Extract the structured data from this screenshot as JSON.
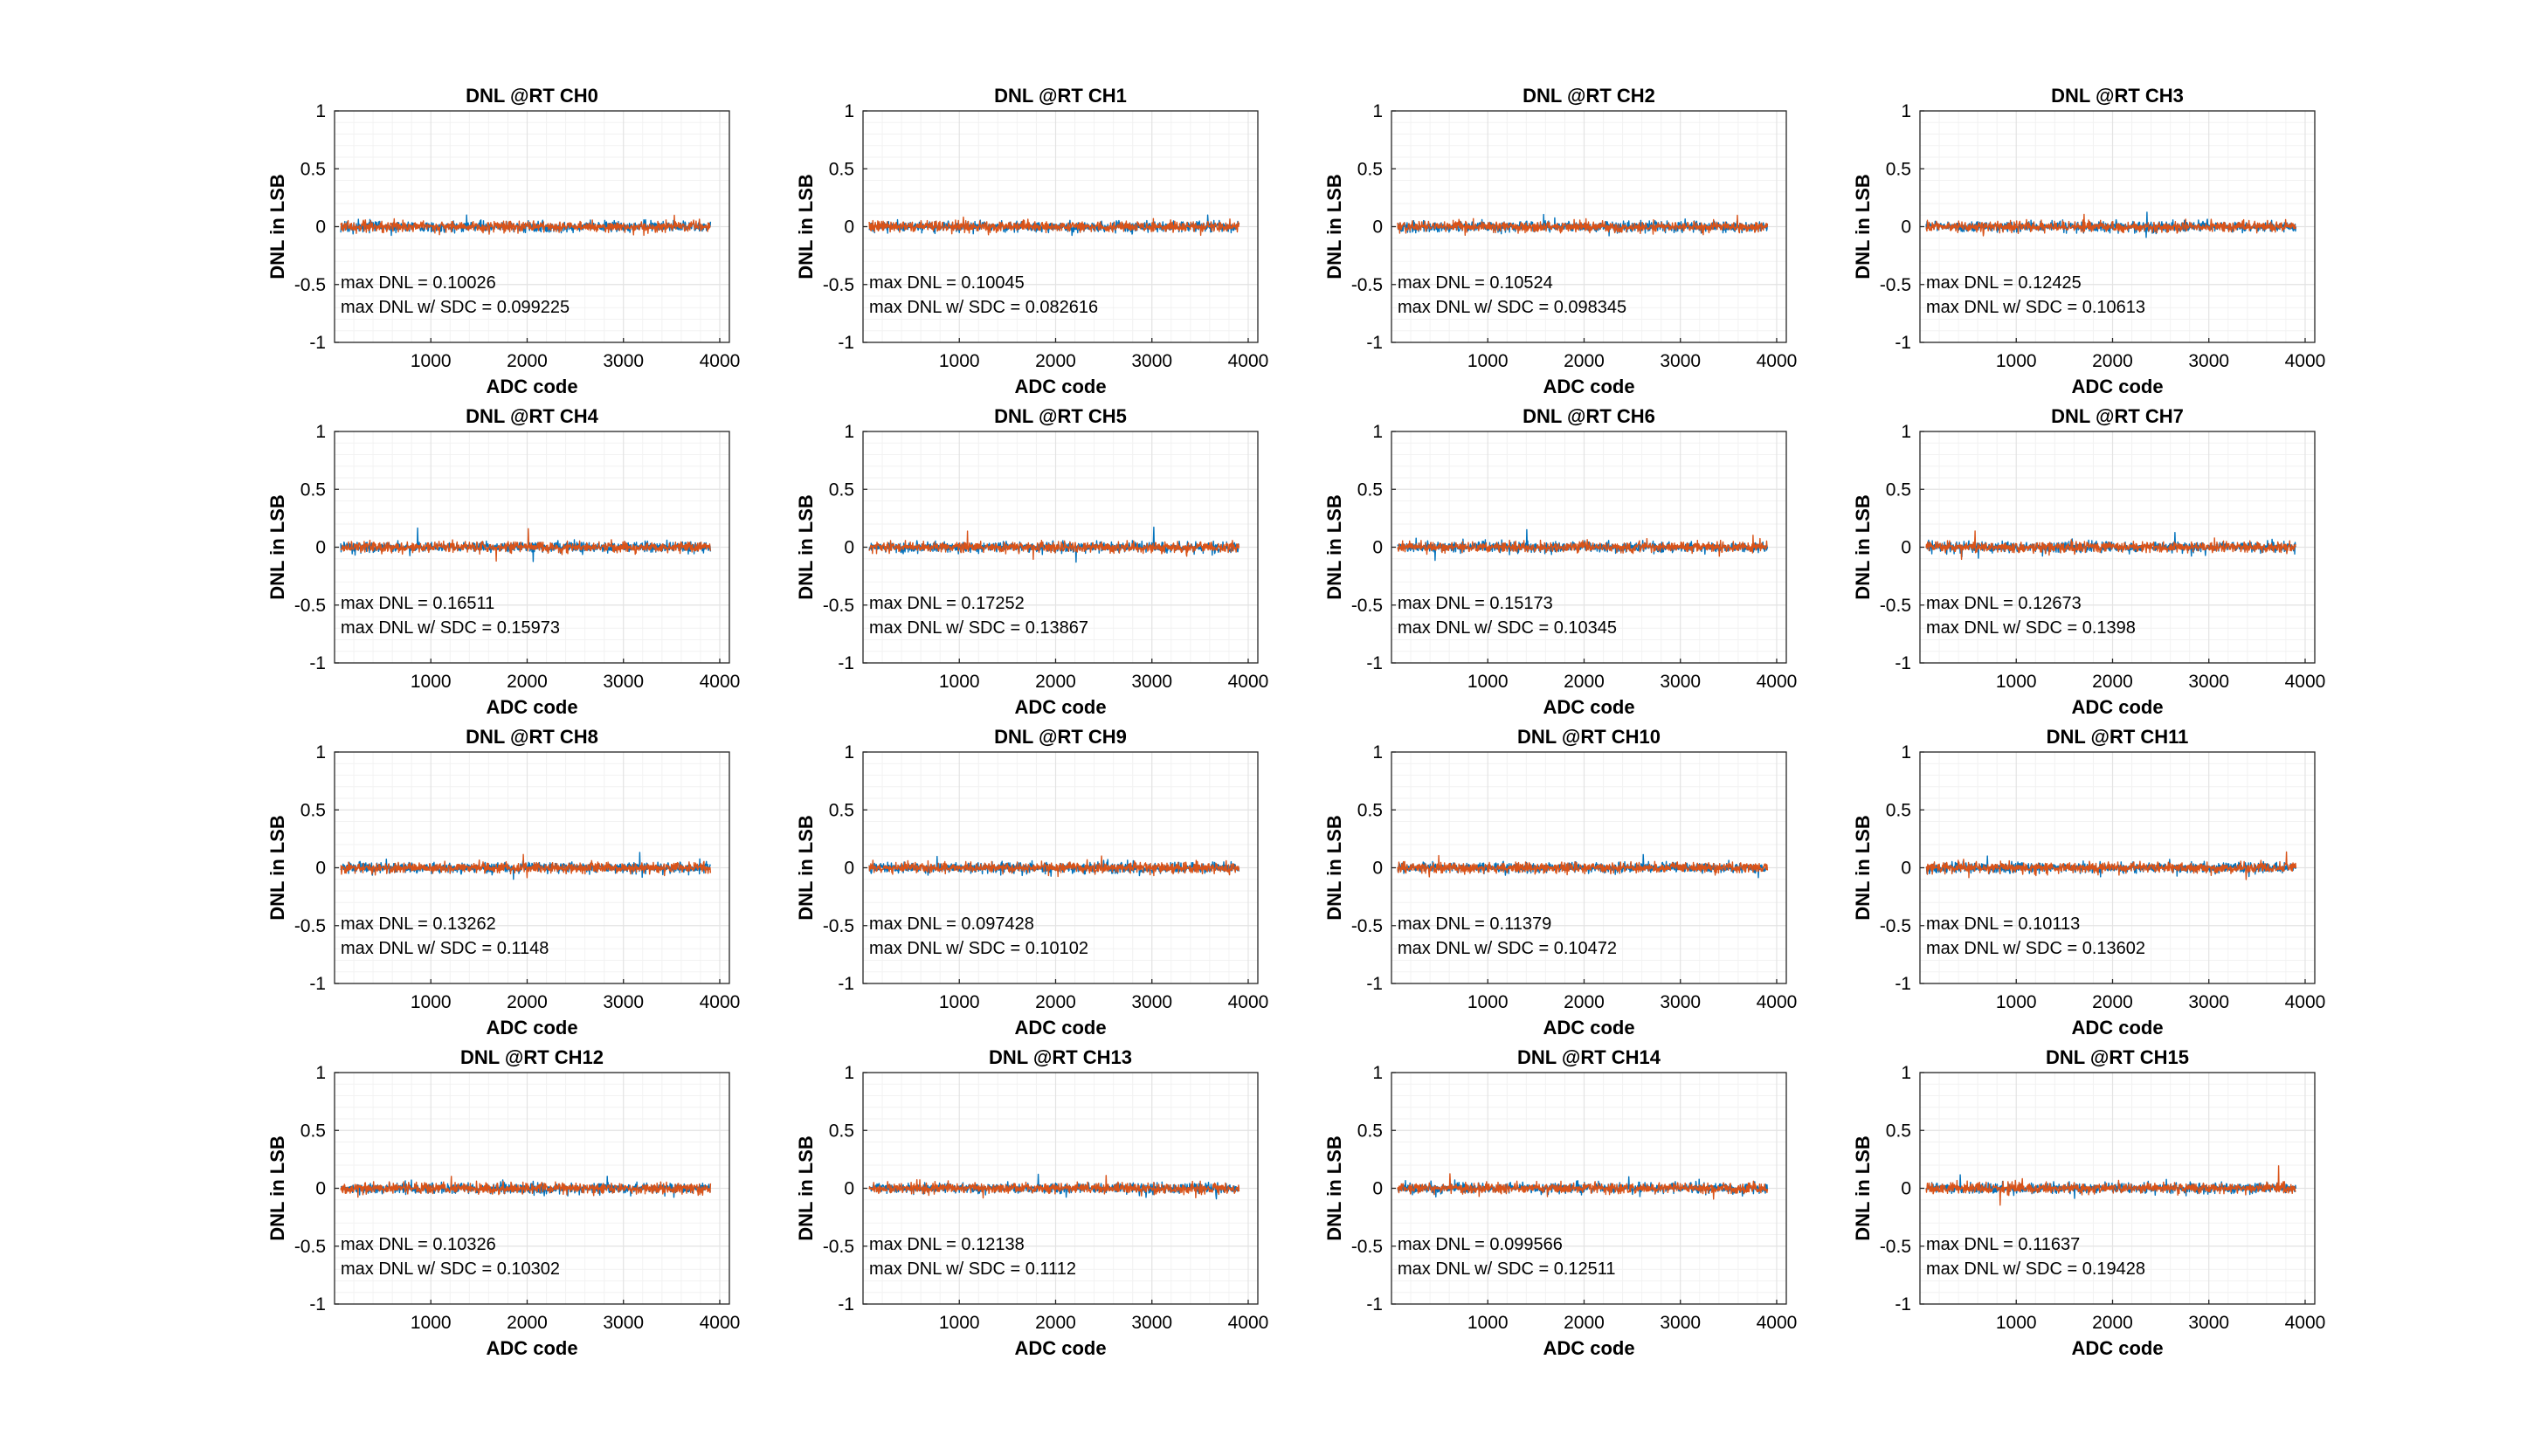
{
  "figure": {
    "colors": {
      "background": "#ffffff",
      "axis": "#262626",
      "grid": "#e3e3e3",
      "minor_grid": "#f2f2f2",
      "dnl": "#0072BD",
      "dnl_sdc": "#D95319"
    }
  },
  "chart_data": [
    {
      "type": "line",
      "title": "DNL @RT CH0",
      "xlabel": "ADC code",
      "ylabel": "DNL in LSB",
      "xlim": [
        0,
        4100
      ],
      "ylim": [
        -1,
        1
      ],
      "xticks": [
        1000,
        2000,
        3000,
        4000
      ],
      "yticks": [
        -1,
        -0.5,
        0,
        0.5,
        1
      ],
      "x_range": [
        64,
        3904
      ],
      "grid": true,
      "series": [
        {
          "color": "#0072BD",
          "max_dnl": 0.10026
        },
        {
          "color": "#D95319",
          "max_dnl": 0.099225
        }
      ],
      "annotations": [
        "max DNL = 0.10026",
        "max DNL w/ SDC = 0.099225"
      ]
    },
    {
      "type": "line",
      "title": "DNL @RT CH1",
      "xlabel": "ADC code",
      "ylabel": "DNL in LSB",
      "xlim": [
        0,
        4100
      ],
      "ylim": [
        -1,
        1
      ],
      "xticks": [
        1000,
        2000,
        3000,
        4000
      ],
      "yticks": [
        -1,
        -0.5,
        0,
        0.5,
        1
      ],
      "x_range": [
        64,
        3904
      ],
      "grid": true,
      "series": [
        {
          "color": "#0072BD",
          "max_dnl": 0.10045
        },
        {
          "color": "#D95319",
          "max_dnl": 0.082616
        }
      ],
      "annotations": [
        "max DNL = 0.10045",
        "max DNL w/ SDC = 0.082616"
      ]
    },
    {
      "type": "line",
      "title": "DNL @RT CH2",
      "xlabel": "ADC code",
      "ylabel": "DNL in LSB",
      "xlim": [
        0,
        4100
      ],
      "ylim": [
        -1,
        1
      ],
      "xticks": [
        1000,
        2000,
        3000,
        4000
      ],
      "yticks": [
        -1,
        -0.5,
        0,
        0.5,
        1
      ],
      "x_range": [
        64,
        3904
      ],
      "grid": true,
      "series": [
        {
          "color": "#0072BD",
          "max_dnl": 0.10524
        },
        {
          "color": "#D95319",
          "max_dnl": 0.098345
        }
      ],
      "annotations": [
        "max DNL = 0.10524",
        "max DNL w/ SDC = 0.098345"
      ]
    },
    {
      "type": "line",
      "title": "DNL @RT CH3",
      "xlabel": "ADC code",
      "ylabel": "DNL in LSB",
      "xlim": [
        0,
        4100
      ],
      "ylim": [
        -1,
        1
      ],
      "xticks": [
        1000,
        2000,
        3000,
        4000
      ],
      "yticks": [
        -1,
        -0.5,
        0,
        0.5,
        1
      ],
      "x_range": [
        64,
        3904
      ],
      "grid": true,
      "series": [
        {
          "color": "#0072BD",
          "max_dnl": 0.12425
        },
        {
          "color": "#D95319",
          "max_dnl": 0.10613
        }
      ],
      "annotations": [
        "max DNL = 0.12425",
        "max DNL w/ SDC = 0.10613"
      ]
    },
    {
      "type": "line",
      "title": "DNL @RT CH4",
      "xlabel": "ADC code",
      "ylabel": "DNL in LSB",
      "xlim": [
        0,
        4100
      ],
      "ylim": [
        -1,
        1
      ],
      "xticks": [
        1000,
        2000,
        3000,
        4000
      ],
      "yticks": [
        -1,
        -0.5,
        0,
        0.5,
        1
      ],
      "x_range": [
        64,
        3904
      ],
      "grid": true,
      "series": [
        {
          "color": "#0072BD",
          "max_dnl": 0.16511
        },
        {
          "color": "#D95319",
          "max_dnl": 0.15973
        }
      ],
      "annotations": [
        "max DNL = 0.16511",
        "max DNL w/ SDC = 0.15973"
      ]
    },
    {
      "type": "line",
      "title": "DNL @RT CH5",
      "xlabel": "ADC code",
      "ylabel": "DNL in LSB",
      "xlim": [
        0,
        4100
      ],
      "ylim": [
        -1,
        1
      ],
      "xticks": [
        1000,
        2000,
        3000,
        4000
      ],
      "yticks": [
        -1,
        -0.5,
        0,
        0.5,
        1
      ],
      "x_range": [
        64,
        3904
      ],
      "grid": true,
      "series": [
        {
          "color": "#0072BD",
          "max_dnl": 0.17252
        },
        {
          "color": "#D95319",
          "max_dnl": 0.13867
        }
      ],
      "annotations": [
        "max DNL = 0.17252",
        "max DNL w/ SDC = 0.13867"
      ]
    },
    {
      "type": "line",
      "title": "DNL @RT CH6",
      "xlabel": "ADC code",
      "ylabel": "DNL in LSB",
      "xlim": [
        0,
        4100
      ],
      "ylim": [
        -1,
        1
      ],
      "xticks": [
        1000,
        2000,
        3000,
        4000
      ],
      "yticks": [
        -1,
        -0.5,
        0,
        0.5,
        1
      ],
      "x_range": [
        64,
        3904
      ],
      "grid": true,
      "series": [
        {
          "color": "#0072BD",
          "max_dnl": 0.15173
        },
        {
          "color": "#D95319",
          "max_dnl": 0.10345
        }
      ],
      "annotations": [
        "max DNL = 0.15173",
        "max DNL w/ SDC = 0.10345"
      ]
    },
    {
      "type": "line",
      "title": "DNL @RT CH7",
      "xlabel": "ADC code",
      "ylabel": "DNL in LSB",
      "xlim": [
        0,
        4100
      ],
      "ylim": [
        -1,
        1
      ],
      "xticks": [
        1000,
        2000,
        3000,
        4000
      ],
      "yticks": [
        -1,
        -0.5,
        0,
        0.5,
        1
      ],
      "x_range": [
        64,
        3904
      ],
      "grid": true,
      "series": [
        {
          "color": "#0072BD",
          "max_dnl": 0.12673
        },
        {
          "color": "#D95319",
          "max_dnl": 0.1398
        }
      ],
      "annotations": [
        "max DNL = 0.12673",
        "max DNL w/ SDC = 0.1398"
      ]
    },
    {
      "type": "line",
      "title": "DNL @RT CH8",
      "xlabel": "ADC code",
      "ylabel": "DNL in LSB",
      "xlim": [
        0,
        4100
      ],
      "ylim": [
        -1,
        1
      ],
      "xticks": [
        1000,
        2000,
        3000,
        4000
      ],
      "yticks": [
        -1,
        -0.5,
        0,
        0.5,
        1
      ],
      "x_range": [
        64,
        3904
      ],
      "grid": true,
      "series": [
        {
          "color": "#0072BD",
          "max_dnl": 0.13262
        },
        {
          "color": "#D95319",
          "max_dnl": 0.1148
        }
      ],
      "annotations": [
        "max DNL = 0.13262",
        "max DNL w/ SDC = 0.1148"
      ]
    },
    {
      "type": "line",
      "title": "DNL @RT CH9",
      "xlabel": "ADC code",
      "ylabel": "DNL in LSB",
      "xlim": [
        0,
        4100
      ],
      "ylim": [
        -1,
        1
      ],
      "xticks": [
        1000,
        2000,
        3000,
        4000
      ],
      "yticks": [
        -1,
        -0.5,
        0,
        0.5,
        1
      ],
      "x_range": [
        64,
        3904
      ],
      "grid": true,
      "series": [
        {
          "color": "#0072BD",
          "max_dnl": 0.097428
        },
        {
          "color": "#D95319",
          "max_dnl": 0.10102
        }
      ],
      "annotations": [
        "max DNL = 0.097428",
        "max DNL w/ SDC = 0.10102"
      ]
    },
    {
      "type": "line",
      "title": "DNL @RT CH10",
      "xlabel": "ADC code",
      "ylabel": "DNL in LSB",
      "xlim": [
        0,
        4100
      ],
      "ylim": [
        -1,
        1
      ],
      "xticks": [
        1000,
        2000,
        3000,
        4000
      ],
      "yticks": [
        -1,
        -0.5,
        0,
        0.5,
        1
      ],
      "x_range": [
        64,
        3904
      ],
      "grid": true,
      "series": [
        {
          "color": "#0072BD",
          "max_dnl": 0.11379
        },
        {
          "color": "#D95319",
          "max_dnl": 0.10472
        }
      ],
      "annotations": [
        "max DNL = 0.11379",
        "max DNL w/ SDC = 0.10472"
      ]
    },
    {
      "type": "line",
      "title": "DNL @RT CH11",
      "xlabel": "ADC code",
      "ylabel": "DNL in LSB",
      "xlim": [
        0,
        4100
      ],
      "ylim": [
        -1,
        1
      ],
      "xticks": [
        1000,
        2000,
        3000,
        4000
      ],
      "yticks": [
        -1,
        -0.5,
        0,
        0.5,
        1
      ],
      "x_range": [
        64,
        3904
      ],
      "grid": true,
      "series": [
        {
          "color": "#0072BD",
          "max_dnl": 0.10113
        },
        {
          "color": "#D95319",
          "max_dnl": 0.13602
        }
      ],
      "annotations": [
        "max DNL = 0.10113",
        "max DNL w/ SDC = 0.13602"
      ]
    },
    {
      "type": "line",
      "title": "DNL @RT CH12",
      "xlabel": "ADC code",
      "ylabel": "DNL in LSB",
      "xlim": [
        0,
        4100
      ],
      "ylim": [
        -1,
        1
      ],
      "xticks": [
        1000,
        2000,
        3000,
        4000
      ],
      "yticks": [
        -1,
        -0.5,
        0,
        0.5,
        1
      ],
      "x_range": [
        64,
        3904
      ],
      "grid": true,
      "series": [
        {
          "color": "#0072BD",
          "max_dnl": 0.10326
        },
        {
          "color": "#D95319",
          "max_dnl": 0.10302
        }
      ],
      "annotations": [
        "max DNL = 0.10326",
        "max DNL w/ SDC = 0.10302"
      ]
    },
    {
      "type": "line",
      "title": "DNL @RT CH13",
      "xlabel": "ADC code",
      "ylabel": "DNL in LSB",
      "xlim": [
        0,
        4100
      ],
      "ylim": [
        -1,
        1
      ],
      "xticks": [
        1000,
        2000,
        3000,
        4000
      ],
      "yticks": [
        -1,
        -0.5,
        0,
        0.5,
        1
      ],
      "x_range": [
        64,
        3904
      ],
      "grid": true,
      "series": [
        {
          "color": "#0072BD",
          "max_dnl": 0.12138
        },
        {
          "color": "#D95319",
          "max_dnl": 0.1112
        }
      ],
      "annotations": [
        "max DNL = 0.12138",
        "max DNL w/ SDC = 0.1112"
      ]
    },
    {
      "type": "line",
      "title": "DNL @RT CH14",
      "xlabel": "ADC code",
      "ylabel": "DNL in LSB",
      "xlim": [
        0,
        4100
      ],
      "ylim": [
        -1,
        1
      ],
      "xticks": [
        1000,
        2000,
        3000,
        4000
      ],
      "yticks": [
        -1,
        -0.5,
        0,
        0.5,
        1
      ],
      "x_range": [
        64,
        3904
      ],
      "grid": true,
      "series": [
        {
          "color": "#0072BD",
          "max_dnl": 0.099566
        },
        {
          "color": "#D95319",
          "max_dnl": 0.12511
        }
      ],
      "annotations": [
        "max DNL = 0.099566",
        "max DNL w/ SDC = 0.12511"
      ]
    },
    {
      "type": "line",
      "title": "DNL @RT CH15",
      "xlabel": "ADC code",
      "ylabel": "DNL in LSB",
      "xlim": [
        0,
        4100
      ],
      "ylim": [
        -1,
        1
      ],
      "xticks": [
        1000,
        2000,
        3000,
        4000
      ],
      "yticks": [
        -1,
        -0.5,
        0,
        0.5,
        1
      ],
      "x_range": [
        64,
        3904
      ],
      "grid": true,
      "series": [
        {
          "color": "#0072BD",
          "max_dnl": 0.11637
        },
        {
          "color": "#D95319",
          "max_dnl": 0.19428
        }
      ],
      "annotations": [
        "max DNL = 0.11637",
        "max DNL w/ SDC = 0.19428"
      ]
    }
  ]
}
